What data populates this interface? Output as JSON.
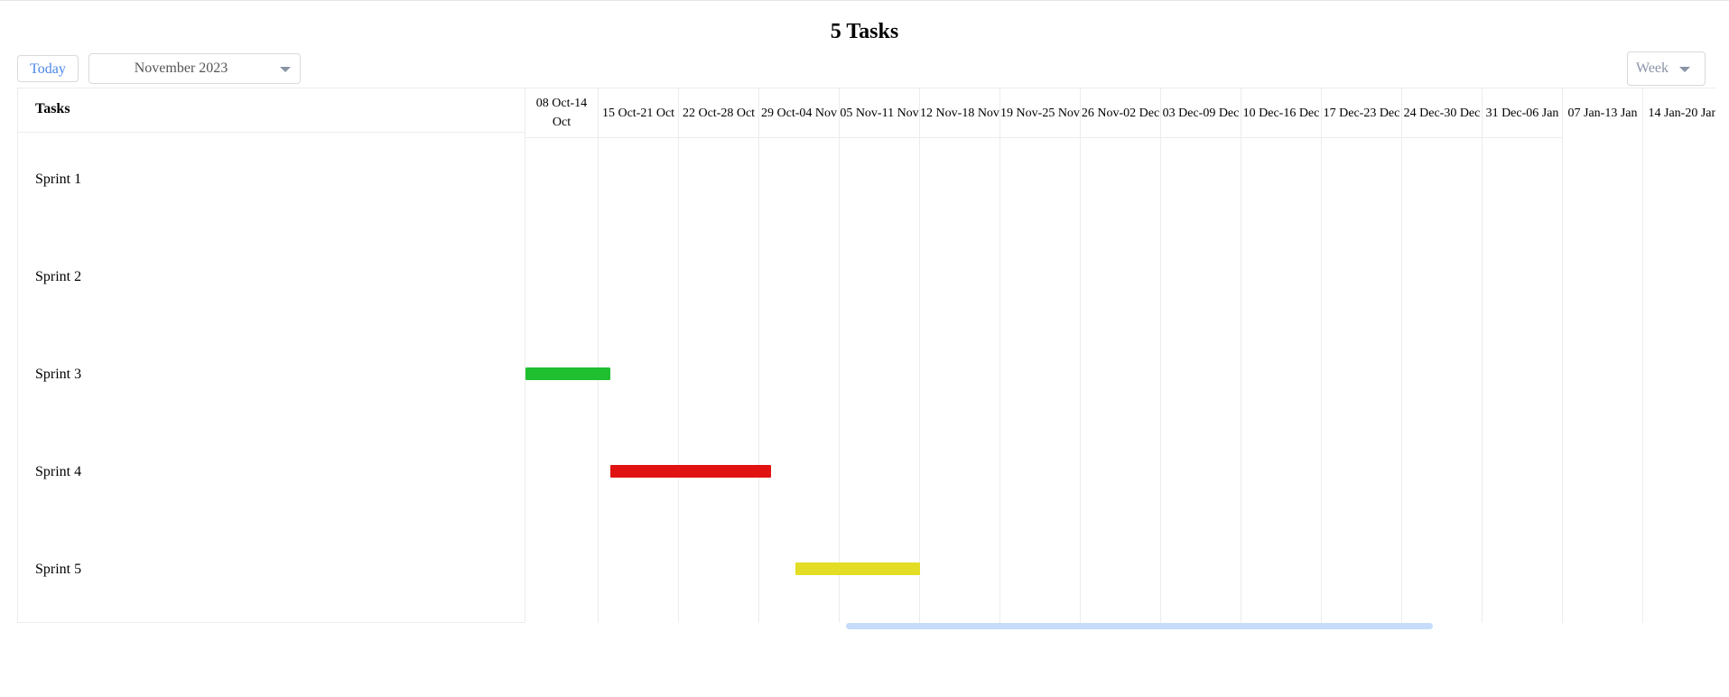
{
  "title": "5 Tasks",
  "toolbar": {
    "today_label": "Today",
    "month_value": "November 2023",
    "view_value": "Week"
  },
  "left_header": "Tasks",
  "tasks": [
    {
      "name": "Sprint 1"
    },
    {
      "name": "Sprint 2"
    },
    {
      "name": "Sprint 3"
    },
    {
      "name": "Sprint 4"
    },
    {
      "name": "Sprint 5"
    }
  ],
  "weeks": [
    {
      "label": "08 Oct-14 Oct"
    },
    {
      "label": "15 Oct-21 Oct"
    },
    {
      "label": "22 Oct-28 Oct"
    },
    {
      "label": "29 Oct-04 Nov"
    },
    {
      "label": "05 Nov-11 Nov"
    },
    {
      "label": "12 Nov-18 Nov"
    },
    {
      "label": "19 Nov-25 Nov"
    },
    {
      "label": "26 Nov-02 Dec"
    },
    {
      "label": "03 Dec-09 Dec"
    },
    {
      "label": "10 Dec-16 Dec"
    },
    {
      "label": "17 Dec-23 Dec"
    },
    {
      "label": "24 Dec-30 Dec"
    },
    {
      "label": "31 Dec-06 Jan"
    },
    {
      "label": "07 Jan-13 Jan"
    },
    {
      "label": "14 Jan-20 Jan"
    }
  ],
  "bars": [
    {
      "task": "Sprint 3",
      "start_week": 0,
      "end_week": 1.15,
      "color": "#1fbf2f"
    },
    {
      "task": "Sprint 4",
      "start_week": 1.15,
      "end_week": 3.15,
      "color": "#e01212"
    },
    {
      "task": "Sprint 5",
      "start_week": 3.45,
      "end_week": 5.0,
      "color": "#e3dd25"
    }
  ],
  "colors": {
    "accent": "#4a86e8",
    "scrollbar": "#c6dcfa",
    "grid": "#ececec"
  }
}
